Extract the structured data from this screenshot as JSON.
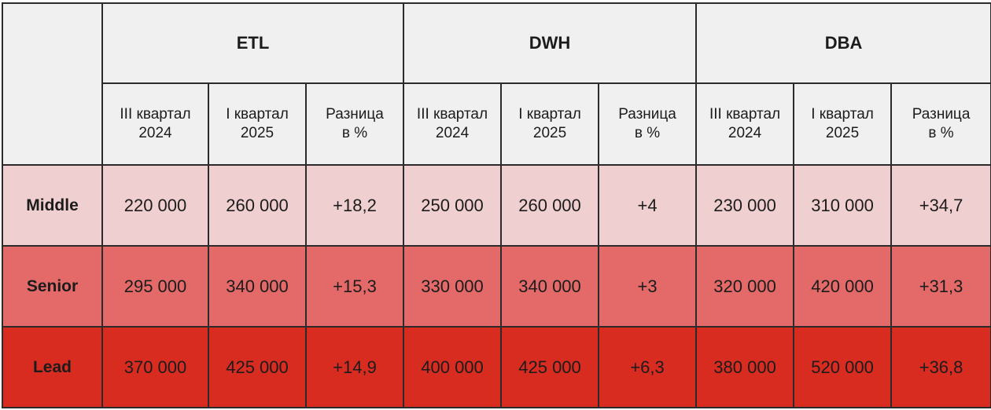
{
  "groups": [
    "ETL",
    "DWH",
    "DBA"
  ],
  "subheaders": [
    "III квартал\n2024",
    "I квартал\n2025",
    "Разница\nв %"
  ],
  "rows": [
    {
      "label": "Middle",
      "bg": "#f0cfd0",
      "values": [
        "220 000",
        "260 000",
        "+18,2",
        "250 000",
        "260 000",
        "+4",
        "230 000",
        "310 000",
        "+34,7"
      ]
    },
    {
      "label": "Senior",
      "bg": "#e36a69",
      "values": [
        "295 000",
        "340 000",
        "+15,3",
        "330 000",
        "340 000",
        "+3",
        "320 000",
        "420 000",
        "+31,3"
      ]
    },
    {
      "label": "Lead",
      "bg": "#d82c21",
      "values": [
        "370 000",
        "425 000",
        "+14,9",
        "400 000",
        "425 000",
        "+6,3",
        "380 000",
        "520 000",
        "+36,8"
      ]
    }
  ],
  "colors": {
    "header_bg": "#f0f0f0",
    "border": "#2b2b2b"
  }
}
